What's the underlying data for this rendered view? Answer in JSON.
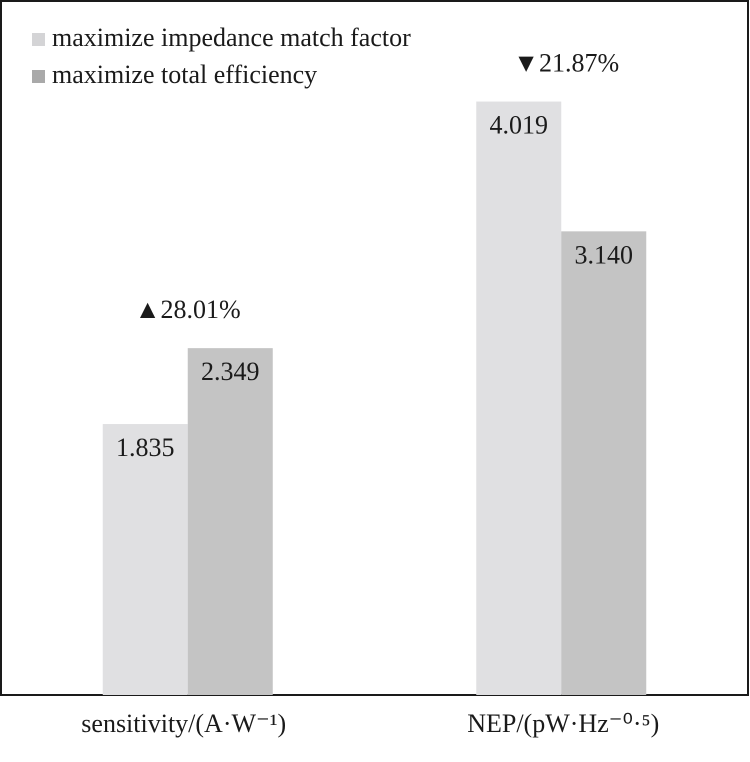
{
  "chart_data": {
    "type": "bar",
    "categories": [
      "sensitivity/(A·W⁻¹)",
      "NEP/(pW·Hz⁻⁰·⁵)"
    ],
    "series": [
      {
        "name": "maximize impedance match factor",
        "color": "#e0e0e2",
        "values": [
          1.835,
          4.019
        ],
        "value_labels": [
          "1.835",
          "4.019"
        ]
      },
      {
        "name": "maximize total efficiency",
        "color": "#c4c4c4",
        "values": [
          2.349,
          3.14
        ],
        "value_labels": [
          "2.349",
          "3.140"
        ]
      }
    ],
    "annotations": [
      "▲28.01%",
      "▼21.87%"
    ],
    "ylim": [
      0,
      4.7
    ],
    "legend": "top-left"
  }
}
